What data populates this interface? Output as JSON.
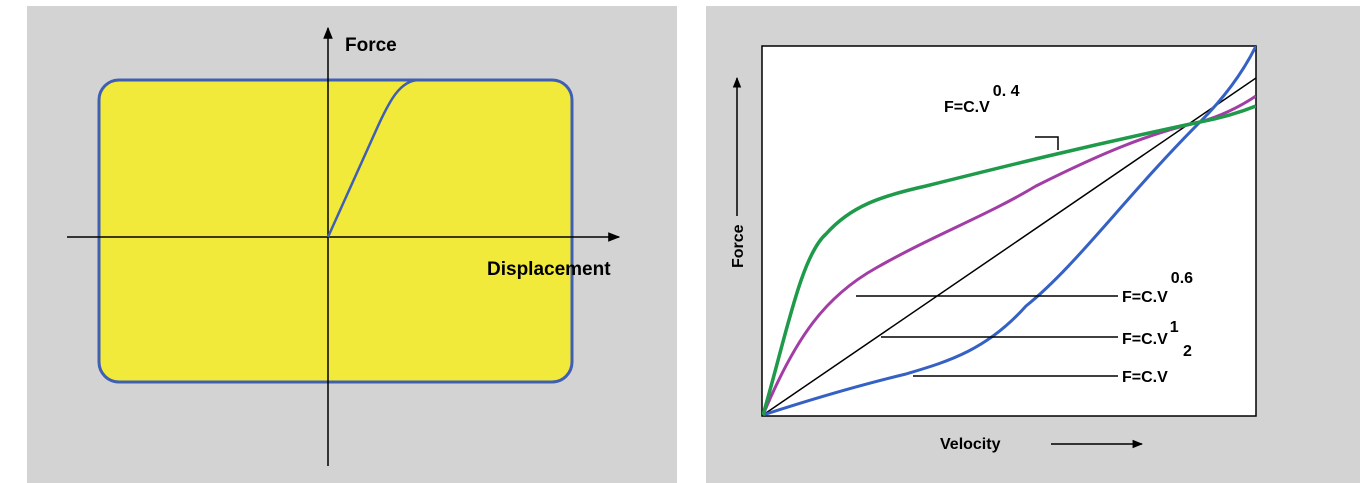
{
  "left_diagram": {
    "y_axis_label": "Force",
    "x_axis_label": "Displacement",
    "colors": {
      "fill": "#f2ea3a",
      "outline": "#3f5fb4",
      "background": "#d3d3d3"
    }
  },
  "right_chart": {
    "y_axis_label": "Force",
    "x_axis_label": "Velocity",
    "curves": [
      {
        "label_base": "F=C.V",
        "exponent": "0. 4",
        "color": "#1f9a4a"
      },
      {
        "label_base": "F=C.V",
        "exponent": "0.6",
        "color": "#a23da5"
      },
      {
        "label_base": "F=C.V",
        "exponent": "1",
        "color": "#000000"
      },
      {
        "label_base": "F=C.V",
        "exponent": "2",
        "color": "#3561c4"
      }
    ]
  }
}
